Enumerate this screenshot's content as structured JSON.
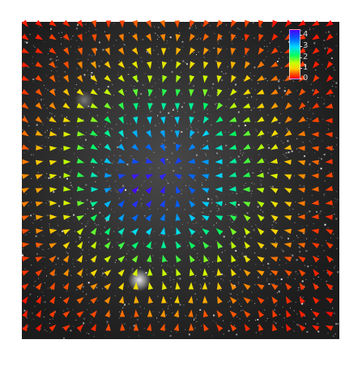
{
  "colorbar": {
    "ticks": [
      "4",
      "3",
      "2",
      "1",
      "0"
    ],
    "colors": [
      "#4b00ff",
      "#0060ff",
      "#00d8ff",
      "#00ff60",
      "#c8ff00",
      "#ffd000",
      "#ff5a00",
      "#ff0000"
    ]
  },
  "icons": {
    "field": "vector-field-arrows",
    "background": "microscopy-image"
  }
}
